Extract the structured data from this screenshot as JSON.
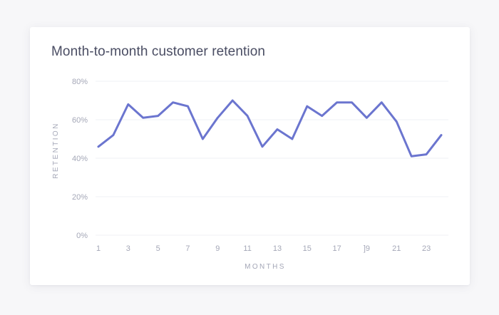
{
  "chart_data": {
    "type": "line",
    "title": "Month-to-month customer retention",
    "xlabel": "MONTHS",
    "ylabel": "RETENTION",
    "ylim": [
      0,
      80
    ],
    "y_ticks": [
      "0%",
      "20%",
      "40%",
      "60%",
      "80%"
    ],
    "y_tick_values": [
      0,
      20,
      40,
      60,
      80
    ],
    "x_ticks": [
      "1",
      "3",
      "5",
      "7",
      "9",
      "11",
      "13",
      "15",
      "17",
      "]9",
      "21",
      "23"
    ],
    "x_tick_values": [
      1,
      3,
      5,
      7,
      9,
      11,
      13,
      15,
      17,
      19,
      21,
      23
    ],
    "xlim": [
      1,
      24
    ],
    "grid": true,
    "legend": "none",
    "series": [
      {
        "color": "#6b75cf",
        "x": [
          1,
          2,
          3,
          4,
          5,
          6,
          7,
          8,
          9,
          10,
          11,
          12,
          13,
          14,
          15,
          16,
          17,
          18,
          19,
          20,
          21,
          22,
          23,
          24
        ],
        "values": [
          46,
          52,
          68,
          61,
          62,
          69,
          67,
          50,
          61,
          70,
          62,
          46,
          55,
          50,
          67,
          62,
          69,
          69,
          61,
          69,
          59,
          41,
          42,
          52
        ]
      }
    ]
  }
}
